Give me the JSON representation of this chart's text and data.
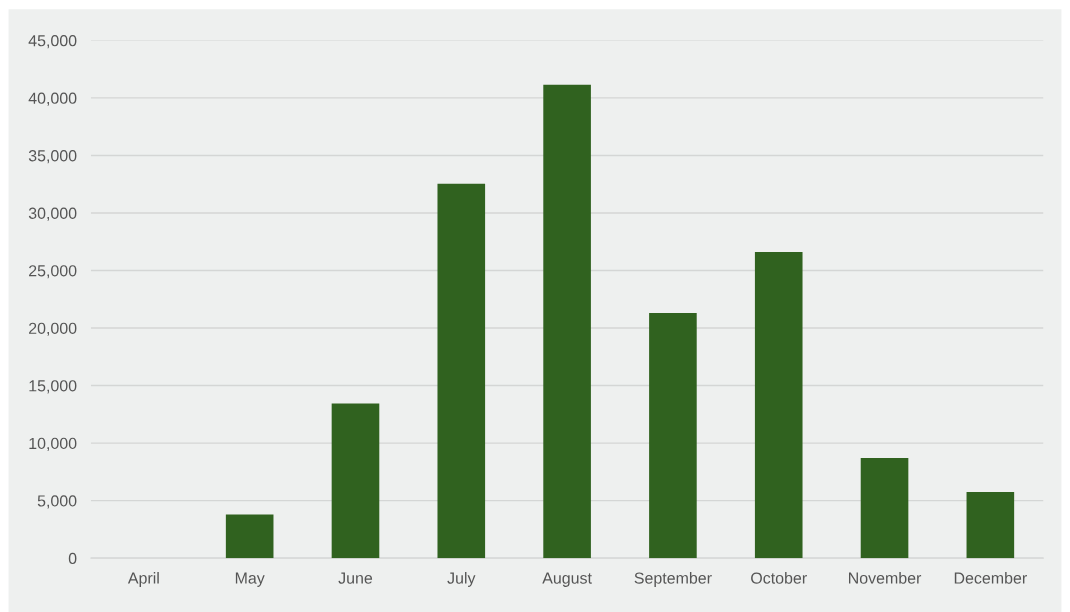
{
  "chart_data": {
    "type": "bar",
    "categories": [
      "April",
      "May",
      "June",
      "July",
      "August",
      "September",
      "October",
      "November",
      "December"
    ],
    "values": [
      0,
      3800,
      13450,
      32550,
      41150,
      21300,
      26600,
      8700,
      5750
    ],
    "color": "#30621f",
    "ylim": [
      0,
      45000
    ],
    "yticks": [
      {
        "value": 0,
        "label": "0"
      },
      {
        "value": 5000,
        "label": "5,000"
      },
      {
        "value": 10000,
        "label": "10,000"
      },
      {
        "value": 15000,
        "label": "15,000"
      },
      {
        "value": 20000,
        "label": "20,000"
      },
      {
        "value": 25000,
        "label": "25,000"
      },
      {
        "value": 30000,
        "label": "30,000"
      },
      {
        "value": 35000,
        "label": "35,000"
      },
      {
        "value": 40000,
        "label": "40,000"
      },
      {
        "value": 45000,
        "label": "45,000"
      }
    ],
    "grid": "y"
  }
}
